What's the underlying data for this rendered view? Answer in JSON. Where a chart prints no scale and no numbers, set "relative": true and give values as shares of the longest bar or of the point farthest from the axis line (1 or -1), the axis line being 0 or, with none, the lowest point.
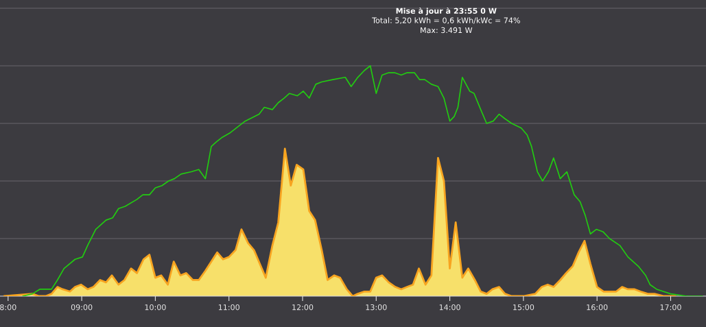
{
  "chart_data": {
    "type": "area",
    "relative": true,
    "title": "Mise à jour à 23:55 0 W",
    "subtitle": "Total: 5,20 kWh = 0,6 kWh/kWc = 74%",
    "annotations": [
      "Max: 3.491 W"
    ],
    "xlim": [
      7.89,
      17.48
    ],
    "xticks": [
      {
        "value": 8,
        "label": "8:00"
      },
      {
        "value": 9,
        "label": "09:00"
      },
      {
        "value": 10,
        "label": "10:00"
      },
      {
        "value": 11,
        "label": "11:00"
      },
      {
        "value": 12,
        "label": "12:00"
      },
      {
        "value": 13,
        "label": "13:00"
      },
      {
        "value": 14,
        "label": "14:00"
      },
      {
        "value": 15,
        "label": "15:00"
      },
      {
        "value": 16,
        "label": "16:00"
      },
      {
        "value": 17,
        "label": "17:00"
      }
    ],
    "grid": "y",
    "series": [
      {
        "color": "#f7e06a",
        "x": [
          7.95,
          8.33,
          8.42,
          8.51,
          8.59,
          8.67,
          8.74,
          8.84,
          8.91,
          8.99,
          9.08,
          9.16,
          9.25,
          9.33,
          9.41,
          9.5,
          9.58,
          9.67,
          9.75,
          9.84,
          9.92,
          10.0,
          10.08,
          10.17,
          10.25,
          10.34,
          10.42,
          10.51,
          10.59,
          10.68,
          10.84,
          10.92,
          11.0,
          11.09,
          11.17,
          11.26,
          11.34,
          11.42,
          11.5,
          11.59,
          11.67,
          11.76,
          11.84,
          11.92,
          12.01,
          12.09,
          12.17,
          12.26,
          12.34,
          12.43,
          12.51,
          12.6,
          12.68,
          12.75,
          12.84,
          12.92,
          13.0,
          13.08,
          13.17,
          13.26,
          13.34,
          13.42,
          13.5,
          13.58,
          13.67,
          13.75,
          13.84,
          13.92,
          14.0,
          14.08,
          14.17,
          14.25,
          14.34,
          14.42,
          14.5,
          14.58,
          14.67,
          14.75,
          14.84,
          15.0,
          15.16,
          15.25,
          15.33,
          15.41,
          15.5,
          15.58,
          15.67,
          15.75,
          15.83,
          15.91,
          16.0,
          16.09,
          16.17,
          16.26,
          16.34,
          16.42,
          16.51,
          16.59,
          16.69,
          16.78,
          16.91,
          17.06
        ],
        "values": [
          0,
          0.01,
          0.0,
          0.0,
          0.01,
          0.04,
          0.03,
          0.02,
          0.04,
          0.05,
          0.03,
          0.04,
          0.07,
          0.06,
          0.09,
          0.05,
          0.07,
          0.12,
          0.1,
          0.16,
          0.18,
          0.08,
          0.09,
          0.05,
          0.15,
          0.09,
          0.1,
          0.07,
          0.07,
          0.11,
          0.19,
          0.16,
          0.17,
          0.2,
          0.29,
          0.23,
          0.2,
          0.14,
          0.08,
          0.22,
          0.32,
          0.64,
          0.48,
          0.57,
          0.55,
          0.37,
          0.33,
          0.2,
          0.07,
          0.09,
          0.08,
          0.03,
          0.0,
          0.01,
          0.02,
          0.02,
          0.08,
          0.09,
          0.06,
          0.04,
          0.03,
          0.04,
          0.05,
          0.12,
          0.05,
          0.09,
          0.6,
          0.5,
          0.12,
          0.32,
          0.08,
          0.12,
          0.07,
          0.02,
          0.01,
          0.03,
          0.04,
          0.01,
          0.0,
          0.0,
          0.01,
          0.04,
          0.05,
          0.04,
          0.07,
          0.1,
          0.13,
          0.19,
          0.24,
          0.14,
          0.04,
          0.02,
          0.02,
          0.02,
          0.04,
          0.03,
          0.03,
          0.02,
          0.01,
          0.01,
          0.0,
          0.0
        ]
      },
      {
        "type": "line",
        "color": "#22cc11",
        "x": [
          8.2,
          8.33,
          8.43,
          8.59,
          8.67,
          8.76,
          8.91,
          9.01,
          9.08,
          9.19,
          9.33,
          9.42,
          9.5,
          9.59,
          9.75,
          9.83,
          9.92,
          10.0,
          10.09,
          10.18,
          10.26,
          10.35,
          10.49,
          10.59,
          10.68,
          10.76,
          10.83,
          10.91,
          11.02,
          11.22,
          11.41,
          11.48,
          11.59,
          11.67,
          11.75,
          11.82,
          11.93,
          12.01,
          12.09,
          12.18,
          12.26,
          12.41,
          12.58,
          12.66,
          12.75,
          12.84,
          12.92,
          13.0,
          13.08,
          13.17,
          13.25,
          13.34,
          13.42,
          13.52,
          13.59,
          13.66,
          13.75,
          13.84,
          13.92,
          14.0,
          14.06,
          14.11,
          14.17,
          14.27,
          14.33,
          14.42,
          14.5,
          14.59,
          14.67,
          14.75,
          14.84,
          14.97,
          15.05,
          15.11,
          15.19,
          15.26,
          15.34,
          15.41,
          15.5,
          15.59,
          15.69,
          15.77,
          15.84,
          15.91,
          15.99,
          16.08,
          16.17,
          16.31,
          16.42,
          16.56,
          16.66,
          16.72,
          16.81,
          17.0,
          17.22,
          17.43
        ],
        "values": [
          0.0,
          0.01,
          0.03,
          0.03,
          0.07,
          0.12,
          0.16,
          0.17,
          0.22,
          0.29,
          0.33,
          0.34,
          0.38,
          0.39,
          0.42,
          0.44,
          0.44,
          0.47,
          0.48,
          0.5,
          0.51,
          0.53,
          0.54,
          0.55,
          0.51,
          0.65,
          0.67,
          0.69,
          0.71,
          0.76,
          0.79,
          0.82,
          0.81,
          0.84,
          0.86,
          0.88,
          0.87,
          0.89,
          0.86,
          0.92,
          0.93,
          0.94,
          0.95,
          0.91,
          0.95,
          0.98,
          1.0,
          0.88,
          0.96,
          0.97,
          0.97,
          0.96,
          0.97,
          0.97,
          0.94,
          0.94,
          0.92,
          0.91,
          0.86,
          0.76,
          0.78,
          0.82,
          0.95,
          0.89,
          0.88,
          0.81,
          0.75,
          0.76,
          0.79,
          0.77,
          0.75,
          0.73,
          0.7,
          0.65,
          0.54,
          0.5,
          0.54,
          0.6,
          0.51,
          0.54,
          0.44,
          0.41,
          0.35,
          0.27,
          0.29,
          0.28,
          0.25,
          0.22,
          0.17,
          0.13,
          0.09,
          0.05,
          0.03,
          0.01,
          0.0,
          0.0
        ]
      }
    ]
  }
}
